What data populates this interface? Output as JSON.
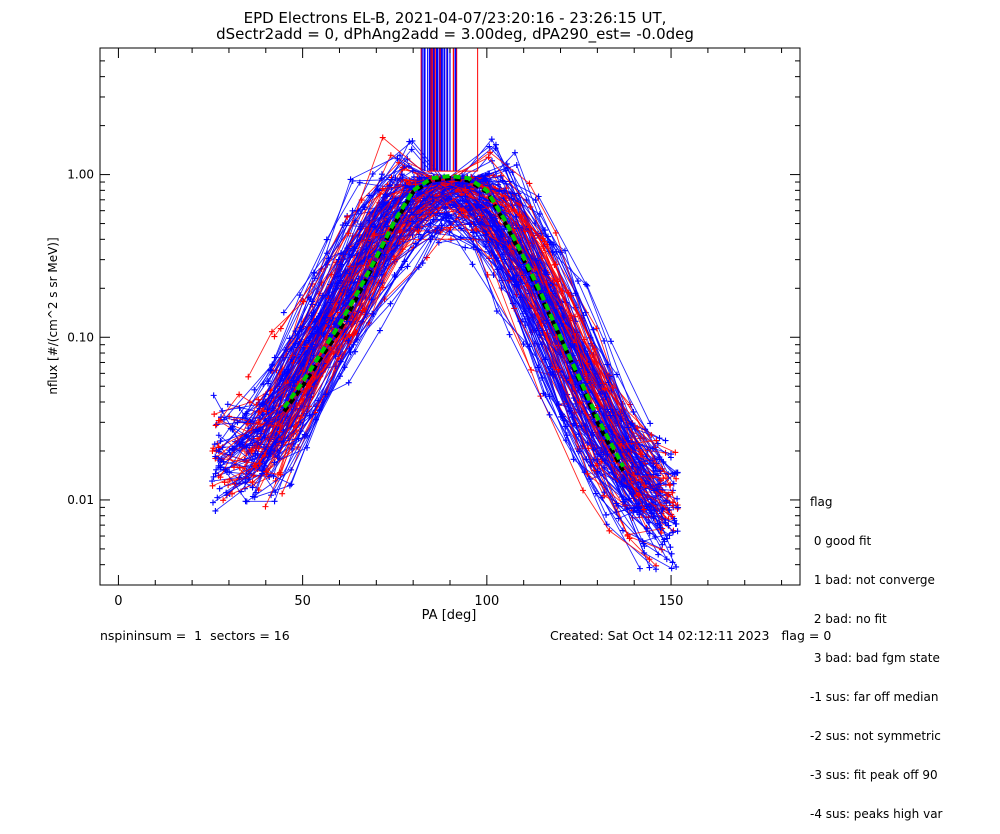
{
  "chart_data": {
    "type": "line",
    "title": "EPD Electrons EL-B, 2021-04-07/23:20:16 - 23:26:15 UT,",
    "subtitle": "dSectr2add = 0, dPhAng2add = 3.00deg, dPA290_est=  -0.0deg",
    "xlabel": "PA [deg]",
    "ylabel": "nflux [#/(cm^2 s sr MeV)]",
    "xlim": [
      -5,
      185
    ],
    "ylim": [
      0.003,
      6
    ],
    "yscale": "log",
    "xticks": [
      "0",
      "50",
      "100",
      "150"
    ],
    "xtick_values": [
      0,
      50,
      100,
      150
    ],
    "yticks": [
      "0.01",
      "0.10",
      "1.00"
    ],
    "ytick_values": [
      0.01,
      0.1,
      1.0
    ],
    "colors": {
      "series_a": "#0000ff",
      "series_b": "#ff0000",
      "median": "#000000",
      "fit": "#00cc00"
    },
    "representative_peak": {
      "x": [
        25,
        40,
        50,
        60,
        70,
        80,
        90,
        100,
        110,
        120,
        130,
        140,
        152
      ],
      "y": [
        0.02,
        0.02,
        0.06,
        0.15,
        0.4,
        0.75,
        0.95,
        0.75,
        0.3,
        0.1,
        0.03,
        0.012,
        0.008
      ]
    },
    "median_curve": {
      "x": [
        45,
        50,
        55,
        60,
        65,
        70,
        75,
        80,
        85,
        90,
        95,
        100,
        105,
        110,
        115,
        120,
        125,
        130,
        137
      ],
      "y": [
        0.035,
        0.05,
        0.075,
        0.11,
        0.18,
        0.3,
        0.5,
        0.78,
        0.92,
        0.95,
        0.92,
        0.78,
        0.5,
        0.3,
        0.17,
        0.1,
        0.055,
        0.03,
        0.015
      ]
    },
    "fit_curve": {
      "x": [
        45,
        50,
        55,
        60,
        65,
        70,
        75,
        80,
        85,
        90,
        95,
        100,
        105,
        110,
        115,
        120,
        125,
        130,
        137
      ],
      "y": [
        0.037,
        0.053,
        0.08,
        0.12,
        0.19,
        0.31,
        0.52,
        0.8,
        0.95,
        0.98,
        0.95,
        0.8,
        0.52,
        0.31,
        0.18,
        0.1,
        0.057,
        0.032,
        0.016
      ]
    }
  },
  "legend": {
    "title": "flag",
    "items": [
      " 0 good fit",
      " 1 bad: not converge",
      " 2 bad: no fit",
      " 3 bad: bad fgm state",
      "-1 sus: far off median",
      "-2 sus: not symmetric",
      "-3 sus: fit peak off 90",
      "-4 sus: peaks high var"
    ]
  },
  "footer": {
    "left": "nspininsum =  1  sectors = 16",
    "right": "Created: Sat Oct 14 02:12:11 2023   flag = 0"
  }
}
